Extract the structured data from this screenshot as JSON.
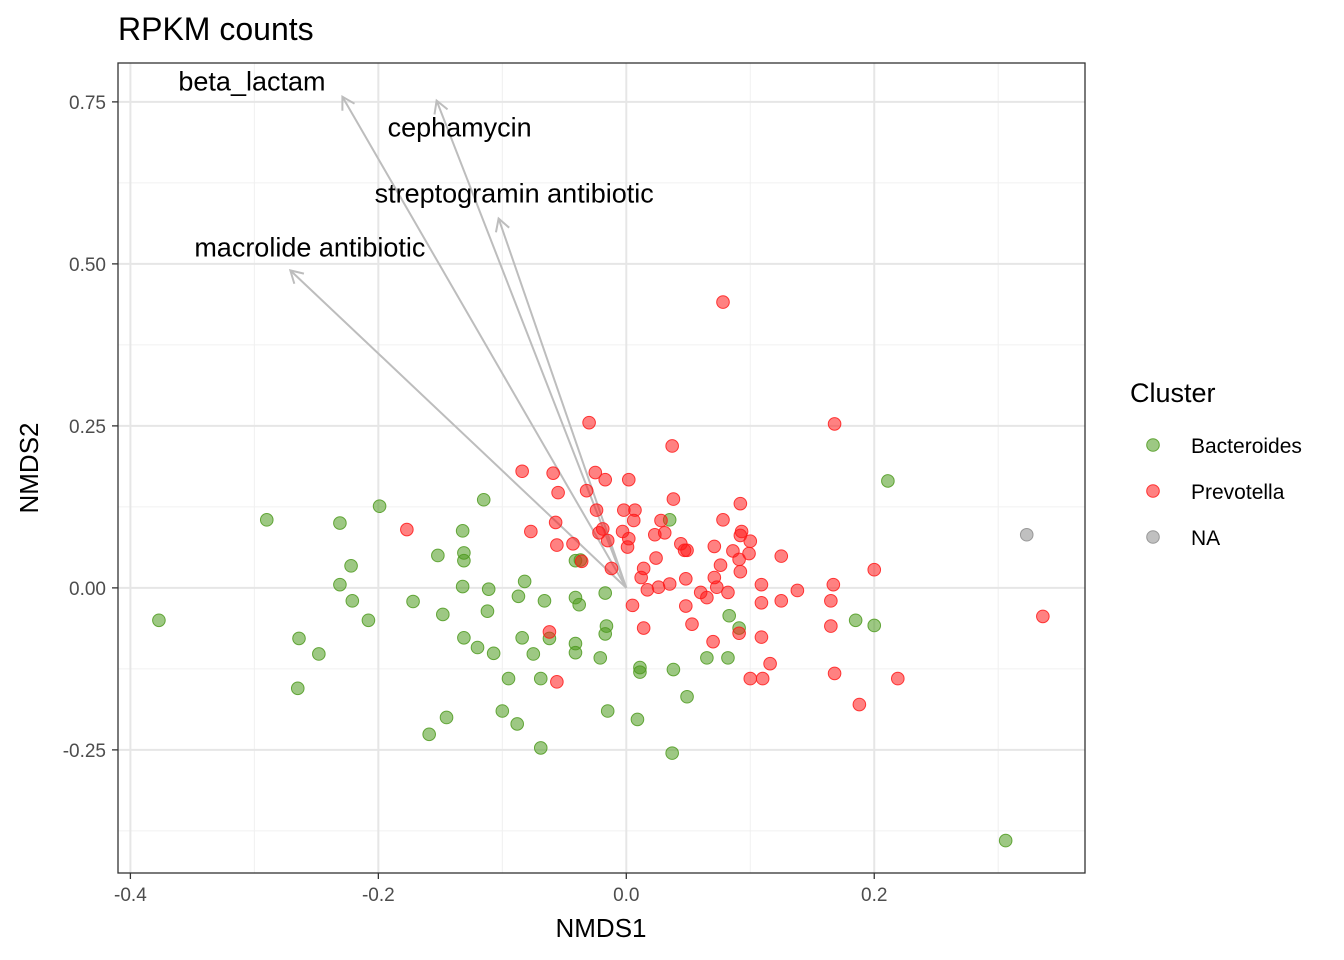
{
  "chart_data": {
    "type": "scatter",
    "title": "RPKM counts",
    "xlabel": "NMDS1",
    "ylabel": "NMDS2",
    "xlim": [
      -0.41,
      0.37
    ],
    "ylim": [
      -0.44,
      0.81
    ],
    "xticks": [
      -0.4,
      -0.2,
      0.0,
      0.2
    ],
    "xtick_labels": [
      "-0.4",
      "-0.2",
      "0.0",
      "0.2"
    ],
    "yticks": [
      -0.25,
      0.0,
      0.25,
      0.5,
      0.75
    ],
    "ytick_labels": [
      "-0.25",
      "0.00",
      "0.25",
      "0.50",
      "0.75"
    ],
    "grid": true,
    "legend": {
      "title": "Cluster",
      "position": "right",
      "entries": [
        {
          "label": "Bacteroides",
          "color": "#4d9a1e"
        },
        {
          "label": "Prevotella",
          "color": "#ff1a1a"
        },
        {
          "label": "NA",
          "color": "#8c8c8c"
        }
      ]
    },
    "vectors": [
      {
        "label": "beta_lactam",
        "x": -0.229,
        "y": 0.758
      },
      {
        "label": "cephamycin",
        "x": -0.153,
        "y": 0.752
      },
      {
        "label": "streptogramin antibiotic",
        "x": -0.103,
        "y": 0.57
      },
      {
        "label": "macrolide antibiotic",
        "x": -0.271,
        "y": 0.49
      }
    ],
    "series": [
      {
        "name": "Bacteroides",
        "color": "#4d9a1e",
        "points": [
          [
            -0.377,
            -0.05
          ],
          [
            -0.29,
            0.105
          ],
          [
            -0.264,
            -0.078
          ],
          [
            -0.265,
            -0.155
          ],
          [
            -0.248,
            -0.102
          ],
          [
            -0.231,
            0.1
          ],
          [
            -0.231,
            0.005
          ],
          [
            -0.222,
            0.034
          ],
          [
            -0.221,
            -0.02
          ],
          [
            -0.208,
            -0.05
          ],
          [
            -0.199,
            0.126
          ],
          [
            -0.172,
            -0.021
          ],
          [
            -0.152,
            0.05
          ],
          [
            -0.148,
            -0.041
          ],
          [
            -0.145,
            -0.2
          ],
          [
            -0.159,
            -0.226
          ],
          [
            -0.132,
            0.088
          ],
          [
            -0.131,
            0.054
          ],
          [
            -0.131,
            0.042
          ],
          [
            -0.132,
            0.002
          ],
          [
            -0.131,
            -0.077
          ],
          [
            -0.12,
            -0.092
          ],
          [
            -0.115,
            0.136
          ],
          [
            -0.111,
            -0.002
          ],
          [
            -0.112,
            -0.036
          ],
          [
            -0.107,
            -0.101
          ],
          [
            -0.1,
            -0.19
          ],
          [
            -0.095,
            -0.14
          ],
          [
            -0.088,
            -0.21
          ],
          [
            -0.087,
            -0.013
          ],
          [
            -0.084,
            -0.077
          ],
          [
            -0.082,
            0.01
          ],
          [
            -0.075,
            -0.102
          ],
          [
            -0.069,
            -0.14
          ],
          [
            -0.069,
            -0.247
          ],
          [
            -0.066,
            -0.02
          ],
          [
            -0.062,
            -0.078
          ],
          [
            -0.041,
            0.042
          ],
          [
            -0.041,
            -0.015
          ],
          [
            -0.038,
            -0.026
          ],
          [
            -0.041,
            -0.1
          ],
          [
            -0.041,
            -0.086
          ],
          [
            -0.037,
            0.043
          ],
          [
            -0.021,
            -0.108
          ],
          [
            -0.017,
            -0.008
          ],
          [
            -0.017,
            -0.071
          ],
          [
            -0.016,
            -0.059
          ],
          [
            -0.015,
            -0.19
          ],
          [
            0.011,
            -0.13
          ],
          [
            0.011,
            -0.123
          ],
          [
            0.009,
            -0.203
          ],
          [
            0.035,
            0.105
          ],
          [
            0.038,
            -0.126
          ],
          [
            0.037,
            -0.255
          ],
          [
            0.049,
            -0.168
          ],
          [
            0.065,
            -0.108
          ],
          [
            0.083,
            -0.043
          ],
          [
            0.082,
            -0.108
          ],
          [
            0.091,
            -0.062
          ],
          [
            0.185,
            -0.05
          ],
          [
            0.2,
            -0.058
          ],
          [
            0.211,
            0.165
          ],
          [
            0.306,
            -0.39
          ]
        ]
      },
      {
        "name": "Prevotella",
        "color": "#ff1a1a",
        "points": [
          [
            0.078,
            0.441
          ],
          [
            0.168,
            0.253
          ],
          [
            -0.03,
            0.255
          ],
          [
            0.037,
            0.219
          ],
          [
            -0.177,
            0.09
          ],
          [
            -0.084,
            0.18
          ],
          [
            -0.059,
            0.177
          ],
          [
            -0.025,
            0.178
          ],
          [
            -0.017,
            0.167
          ],
          [
            0.002,
            0.167
          ],
          [
            -0.055,
            0.147
          ],
          [
            -0.032,
            0.15
          ],
          [
            0.038,
            0.137
          ],
          [
            0.092,
            0.13
          ],
          [
            -0.077,
            0.087
          ],
          [
            -0.057,
            0.101
          ],
          [
            -0.043,
            0.068
          ],
          [
            -0.056,
            0.066
          ],
          [
            -0.036,
            0.041
          ],
          [
            -0.024,
            0.12
          ],
          [
            -0.022,
            0.085
          ],
          [
            -0.019,
            0.091
          ],
          [
            -0.015,
            0.073
          ],
          [
            -0.002,
            0.12
          ],
          [
            0.007,
            0.12
          ],
          [
            0.006,
            0.104
          ],
          [
            -0.003,
            0.087
          ],
          [
            0.002,
            0.076
          ],
          [
            0.001,
            0.063
          ],
          [
            -0.012,
            0.03
          ],
          [
            0.014,
            0.03
          ],
          [
            0.012,
            0.016
          ],
          [
            0.023,
            0.082
          ],
          [
            0.031,
            0.085
          ],
          [
            0.028,
            0.104
          ],
          [
            0.044,
            0.068
          ],
          [
            0.047,
            0.058
          ],
          [
            0.049,
            0.058
          ],
          [
            0.071,
            0.064
          ],
          [
            0.078,
            0.105
          ],
          [
            0.086,
            0.057
          ],
          [
            0.093,
            0.087
          ],
          [
            0.092,
            0.081
          ],
          [
            0.1,
            0.072
          ],
          [
            0.099,
            0.053
          ],
          [
            0.125,
            0.049
          ],
          [
            0.076,
            0.035
          ],
          [
            0.091,
            0.044
          ],
          [
            0.092,
            0.025
          ],
          [
            0.024,
            0.046
          ],
          [
            0.026,
            0.001
          ],
          [
            0.035,
            0.006
          ],
          [
            0.017,
            -0.003
          ],
          [
            0.048,
            0.014
          ],
          [
            0.071,
            0.016
          ],
          [
            0.06,
            -0.007
          ],
          [
            0.065,
            -0.015
          ],
          [
            0.073,
            0.001
          ],
          [
            0.082,
            -0.007
          ],
          [
            0.109,
            0.005
          ],
          [
            0.138,
            -0.004
          ],
          [
            0.167,
            0.005
          ],
          [
            0.2,
            0.028
          ],
          [
            0.005,
            -0.027
          ],
          [
            0.048,
            -0.028
          ],
          [
            0.014,
            -0.062
          ],
          [
            0.053,
            -0.056
          ],
          [
            0.07,
            -0.083
          ],
          [
            0.091,
            -0.07
          ],
          [
            0.109,
            -0.023
          ],
          [
            0.125,
            -0.02
          ],
          [
            0.165,
            -0.02
          ],
          [
            0.109,
            -0.076
          ],
          [
            0.165,
            -0.059
          ],
          [
            0.116,
            -0.117
          ],
          [
            0.1,
            -0.14
          ],
          [
            0.11,
            -0.14
          ],
          [
            0.168,
            -0.132
          ],
          [
            0.188,
            -0.18
          ],
          [
            0.219,
            -0.14
          ],
          [
            -0.062,
            -0.068
          ],
          [
            -0.056,
            -0.145
          ],
          [
            0.336,
            -0.044
          ]
        ]
      },
      {
        "name": "NA",
        "color": "#8c8c8c",
        "points": [
          [
            0.323,
            0.082
          ]
        ]
      }
    ]
  }
}
